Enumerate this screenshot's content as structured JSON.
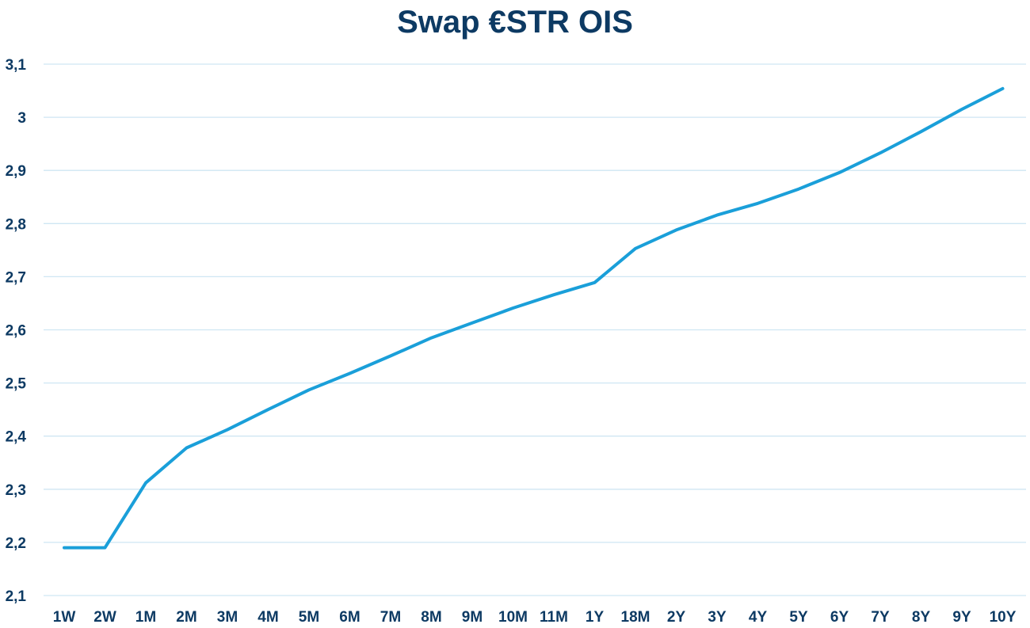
{
  "chart_data": {
    "type": "line",
    "title": "Swap €STR OIS",
    "xlabel": "",
    "ylabel": "",
    "ylim": [
      2.1,
      3.1
    ],
    "yticks": [
      "2,1",
      "2,2",
      "2,3",
      "2,4",
      "2,5",
      "2,6",
      "2,7",
      "2,8",
      "2,9",
      "3",
      "3,1"
    ],
    "ytick_values": [
      2.1,
      2.2,
      2.3,
      2.4,
      2.5,
      2.6,
      2.7,
      2.8,
      2.9,
      3.0,
      3.1
    ],
    "grid": true,
    "line_color": "#1a9fd9",
    "grid_color": "#cfe6f3",
    "label_color": "#0d3a63",
    "categories": [
      "1W",
      "2W",
      "1M",
      "2M",
      "3M",
      "4M",
      "5M",
      "6M",
      "7M",
      "8M",
      "9M",
      "10M",
      "11M",
      "1Y",
      "18M",
      "2Y",
      "3Y",
      "4Y",
      "5Y",
      "6Y",
      "7Y",
      "8Y",
      "9Y",
      "10Y"
    ],
    "values": [
      2.19,
      2.19,
      2.312,
      2.378,
      2.412,
      2.45,
      2.487,
      2.518,
      2.551,
      2.585,
      2.613,
      2.641,
      2.666,
      2.689,
      2.753,
      2.788,
      2.816,
      2.838,
      2.865,
      2.896,
      2.933,
      2.973,
      3.015,
      3.054
    ]
  }
}
